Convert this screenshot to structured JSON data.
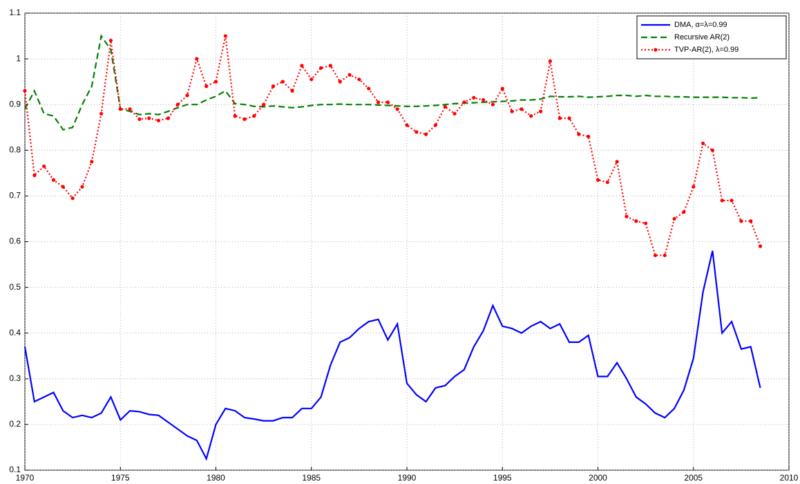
{
  "chart_data": {
    "type": "line",
    "x": [
      1970,
      1970.5,
      1971,
      1971.5,
      1972,
      1972.5,
      1973,
      1973.5,
      1974,
      1974.5,
      1975,
      1975.5,
      1976,
      1976.5,
      1977,
      1977.5,
      1978,
      1978.5,
      1979,
      1979.5,
      1980,
      1980.5,
      1981,
      1981.5,
      1982,
      1982.5,
      1983,
      1983.5,
      1984,
      1984.5,
      1985,
      1985.5,
      1986,
      1986.5,
      1987,
      1987.5,
      1988,
      1988.5,
      1989,
      1989.5,
      1990,
      1990.5,
      1991,
      1991.5,
      1992,
      1992.5,
      1993,
      1993.5,
      1994,
      1994.5,
      1995,
      1995.5,
      1996,
      1996.5,
      1997,
      1997.5,
      1998,
      1998.5,
      1999,
      1999.5,
      2000,
      2000.5,
      2001,
      2001.5,
      2002,
      2002.5,
      2003,
      2003.5,
      2004,
      2004.5,
      2005,
      2005.5,
      2006,
      2006.5,
      2007,
      2007.5,
      2008,
      2008.5
    ],
    "series": [
      {
        "name": "DMA,  α=λ=0.99",
        "color": "#0000ff",
        "style": "solid",
        "values": [
          0.37,
          0.25,
          0.26,
          0.27,
          0.23,
          0.215,
          0.22,
          0.215,
          0.225,
          0.26,
          0.21,
          0.23,
          0.228,
          0.222,
          0.22,
          0.205,
          0.19,
          0.175,
          0.165,
          0.125,
          0.2,
          0.235,
          0.23,
          0.215,
          0.212,
          0.208,
          0.208,
          0.215,
          0.215,
          0.235,
          0.235,
          0.26,
          0.33,
          0.38,
          0.39,
          0.41,
          0.425,
          0.43,
          0.385,
          0.42,
          0.29,
          0.265,
          0.25,
          0.28,
          0.285,
          0.305,
          0.32,
          0.37,
          0.405,
          0.46,
          0.415,
          0.41,
          0.4,
          0.415,
          0.425,
          0.41,
          0.42,
          0.38,
          0.38,
          0.395,
          0.305,
          0.305,
          0.335,
          0.3,
          0.26,
          0.245,
          0.225,
          0.215,
          0.235,
          0.275,
          0.345,
          0.49,
          0.58,
          0.4,
          0.425,
          0.365,
          0.37,
          0.28
        ]
      },
      {
        "name": "Recursive AR(2)",
        "color": "#008000",
        "style": "dashed",
        "values": [
          0.89,
          0.93,
          0.88,
          0.875,
          0.845,
          0.85,
          0.9,
          0.94,
          1.05,
          1.02,
          0.89,
          0.885,
          0.878,
          0.88,
          0.878,
          0.885,
          0.893,
          0.9,
          0.9,
          0.91,
          0.918,
          0.93,
          0.902,
          0.9,
          0.896,
          0.895,
          0.897,
          0.895,
          0.893,
          0.895,
          0.898,
          0.9,
          0.9,
          0.901,
          0.9,
          0.9,
          0.9,
          0.899,
          0.898,
          0.897,
          0.896,
          0.896,
          0.897,
          0.898,
          0.9,
          0.902,
          0.903,
          0.904,
          0.905,
          0.906,
          0.907,
          0.908,
          0.91,
          0.91,
          0.912,
          0.918,
          0.917,
          0.917,
          0.918,
          0.916,
          0.917,
          0.918,
          0.92,
          0.92,
          0.918,
          0.92,
          0.918,
          0.918,
          0.917,
          0.917,
          0.916,
          0.916,
          0.916,
          0.916,
          0.915,
          0.915,
          0.914,
          0.915
        ]
      },
      {
        "name": "TVP-AR(2),  λ=0.99",
        "color": "#ff0000",
        "style": "dotted",
        "markers": true,
        "values": [
          0.93,
          0.745,
          0.765,
          0.735,
          0.72,
          0.695,
          0.72,
          0.775,
          0.88,
          1.04,
          0.89,
          0.89,
          0.868,
          0.87,
          0.865,
          0.87,
          0.9,
          0.92,
          1.0,
          0.94,
          0.95,
          1.05,
          0.875,
          0.868,
          0.875,
          0.9,
          0.94,
          0.95,
          0.93,
          0.985,
          0.955,
          0.98,
          0.985,
          0.95,
          0.965,
          0.955,
          0.935,
          0.905,
          0.905,
          0.89,
          0.855,
          0.84,
          0.835,
          0.855,
          0.895,
          0.88,
          0.905,
          0.915,
          0.91,
          0.9,
          0.935,
          0.885,
          0.89,
          0.875,
          0.885,
          0.995,
          0.87,
          0.87,
          0.835,
          0.83,
          0.735,
          0.73,
          0.775,
          0.655,
          0.645,
          0.64,
          0.57,
          0.57,
          0.65,
          0.665,
          0.72,
          0.815,
          0.8,
          0.69,
          0.69,
          0.645,
          0.645,
          0.59
        ]
      }
    ],
    "xlim": [
      1970,
      2010
    ],
    "xticks": [
      1970,
      1975,
      1980,
      1985,
      1990,
      1995,
      2000,
      2005,
      2010
    ],
    "ylim": [
      0.1,
      1.1
    ],
    "yticks": [
      0.1,
      0.2,
      0.3,
      0.4,
      0.5,
      0.6,
      0.7,
      0.8,
      0.9,
      1,
      1.1
    ],
    "grid": true,
    "legend": "top-right"
  }
}
